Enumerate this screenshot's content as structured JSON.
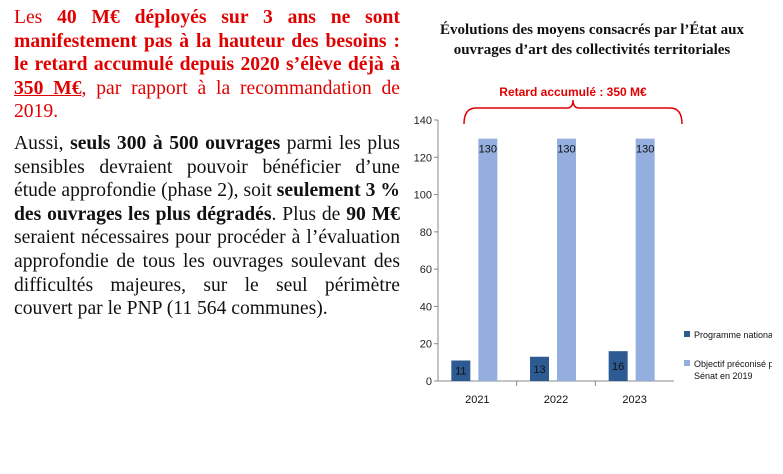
{
  "text": {
    "para1": {
      "part1": "Les ",
      "bold1": "40 M€ déployés sur 3 ans ne sont manifestement pas à la hauteur des besoins : le retard accumulé depuis 2020 s’élève déjà à ",
      "underline": "350 M€",
      "part2": ", par rapport à la recommandation de 2019."
    },
    "para2": {
      "p1": "Aussi, ",
      "b1": "seuls 300 à 500 ouvrages",
      "p2": " parmi les plus sensibles devraient pouvoir bénéficier d’une étude approfondie (phase 2), soit ",
      "b2": "seulement 3 % des ouvrages les plus dégradés",
      "p3": ". Plus de ",
      "b3": "90 M€",
      "p4": " seraient nécessaires pour procéder à l’évaluation approfondie de tous les ouvrages soulevant des difficultés majeures, sur le seul périmètre couvert par le PNP (11 564 communes)."
    }
  },
  "chart_data": {
    "type": "bar",
    "title": "Évolutions des moyens consacrés par l’État aux ouvrages d’art des collectivités territoriales",
    "categories": [
      "2021",
      "2022",
      "2023"
    ],
    "series": [
      {
        "name": "Programme national ponts",
        "values": [
          11,
          13,
          16
        ],
        "color": "#2e5a94"
      },
      {
        "name": "Objectif préconisé par le Sénat en 2019",
        "values": [
          130,
          130,
          130
        ],
        "color": "#94aee0"
      }
    ],
    "ylim": [
      0,
      140
    ],
    "yticks": [
      0,
      20,
      40,
      60,
      80,
      100,
      120,
      140
    ],
    "grid": false,
    "legend": "right",
    "annotation": "Retard accumulé : 350 M€",
    "annotation_color": "#e00000",
    "xlabel": "",
    "ylabel": ""
  }
}
